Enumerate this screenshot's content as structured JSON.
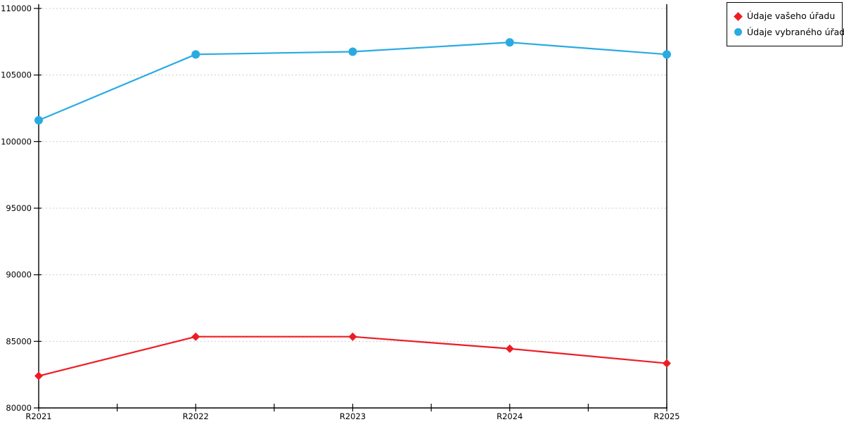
{
  "chart_data": {
    "type": "line",
    "title": "",
    "xlabel": "",
    "ylabel": "",
    "categories": [
      "R2021",
      "R2022",
      "R2023",
      "R2024",
      "R2025"
    ],
    "series": [
      {
        "name": "Údaje vašeho úřadu",
        "color": "#ed1c24",
        "marker": "diamond",
        "values": [
          82400,
          85350,
          85350,
          84450,
          83350
        ]
      },
      {
        "name": "Údaje vybraného úřadu",
        "color": "#29abe2",
        "marker": "circle",
        "values": [
          101600,
          106550,
          106750,
          107450,
          106550
        ]
      }
    ],
    "ylim": [
      80000,
      110000
    ],
    "ytick_step": 5000,
    "y_tick_labels": [
      "80000",
      "85000",
      "90000",
      "95000",
      "100000",
      "105000",
      "110000"
    ],
    "grid": "horizontal-dotted",
    "grid_color": "#c6c6c6",
    "axis_color": "#000000",
    "legend_position": "top-right"
  }
}
